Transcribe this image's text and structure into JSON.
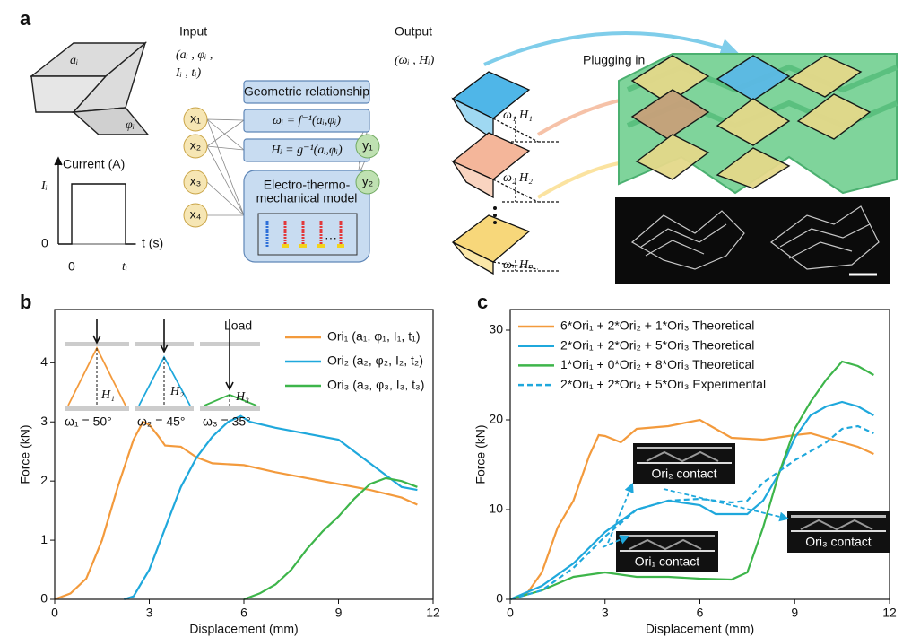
{
  "diagram": {
    "label": "a",
    "input": "Input",
    "input_params": [
      "(aᵢ , φᵢ ,",
      "Iᵢ , tᵢ)"
    ],
    "output": "Output",
    "output_params": "(ωᵢ , Hᵢ)",
    "shape_labels": [
      "aᵢ",
      "φᵢ"
    ],
    "current_plot": {
      "ylabel": "Current (A)",
      "level": "Iᵢ",
      "y0": "0",
      "x0": "0",
      "xend": "tᵢ",
      "xlabel": "t (s)"
    },
    "inputs": [
      "x₁",
      "x₂",
      "x₃",
      "x₄"
    ],
    "outputs": [
      "y₁",
      "y₂"
    ],
    "boxes": [
      "Geometric relationship",
      "ωᵢ = f⁻¹(aᵢ,φᵢ)",
      "Hᵢ = g⁻¹(aᵢ,φᵢ)",
      "Electro-thermo-",
      "mechanical model",
      "···"
    ],
    "units": [
      "ω₁",
      "H₁",
      "ω₂",
      "H₂",
      "ωₙ",
      "Hₙ"
    ],
    "plugging": "Plugging in"
  },
  "chart_data": [
    {
      "type": "line",
      "label": "b",
      "xlabel": "Displacement (mm)",
      "ylabel": "Force (kN)",
      "xlim": [
        0,
        12
      ],
      "xticks": [
        0,
        3,
        6,
        9,
        12
      ],
      "ylim": [
        0,
        4.9
      ],
      "yticks": [
        0,
        1,
        2,
        3,
        4
      ],
      "annotations": [
        "Load",
        "H₁",
        "H₂",
        "H₃",
        "ω₁ = 50°",
        "ω₂ = 45°",
        "ω₃ = 35°"
      ],
      "series": [
        {
          "name": "Ori₁ (a₁, φ₁, I₁, t₁)",
          "color": "#f39a3c",
          "x": [
            0,
            0.5,
            1,
            1.5,
            2,
            2.5,
            2.8,
            3,
            3.3,
            3.5,
            4,
            4.5,
            5,
            6,
            7,
            8,
            9,
            10,
            11,
            11.5
          ],
          "values": [
            0,
            0.1,
            0.35,
            1.0,
            1.9,
            2.7,
            3.0,
            2.95,
            2.75,
            2.6,
            2.58,
            2.4,
            2.3,
            2.27,
            2.15,
            2.05,
            1.95,
            1.85,
            1.72,
            1.6
          ]
        },
        {
          "name": "Ori₂ (a₂, φ₂, I₂, t₂)",
          "color": "#1fa8dc",
          "x": [
            2.2,
            2.5,
            3,
            3.5,
            4,
            4.5,
            5,
            5.5,
            5.9,
            6.2,
            7,
            8,
            9,
            9.5,
            10,
            10.5,
            11,
            11.5
          ],
          "values": [
            0,
            0.05,
            0.5,
            1.2,
            1.9,
            2.4,
            2.75,
            3.0,
            3.1,
            3.0,
            2.9,
            2.8,
            2.7,
            2.5,
            2.3,
            2.1,
            1.9,
            1.85
          ]
        },
        {
          "name": "Ori₃ (a₃, φ₃, I₃, t₃)",
          "color": "#3db54a",
          "x": [
            6,
            6.5,
            7,
            7.5,
            8,
            8.5,
            9,
            9.5,
            10,
            10.5,
            11,
            11.5
          ],
          "values": [
            0,
            0.1,
            0.25,
            0.5,
            0.85,
            1.15,
            1.4,
            1.7,
            1.95,
            2.05,
            2.0,
            1.9
          ]
        }
      ]
    },
    {
      "type": "line",
      "label": "c",
      "xlabel": "Displacement (mm)",
      "ylabel": "Force (kN)",
      "xlim": [
        0,
        12
      ],
      "xticks": [
        0,
        3,
        6,
        9,
        12
      ],
      "ylim": [
        0,
        32.3
      ],
      "yticks": [
        0,
        10,
        20,
        30
      ],
      "annotations": [
        "Ori₂ contact",
        "Ori₁ contact",
        "Ori₃ contact"
      ],
      "series": [
        {
          "name": "6*Ori₁ + 2*Ori₂ + 1*Ori₃ Theoretical",
          "color": "#f39a3c",
          "x": [
            0,
            0.5,
            1,
            1.5,
            2,
            2.5,
            2.8,
            3,
            3.5,
            4,
            5,
            6,
            6.5,
            7,
            8,
            9,
            9.5,
            10,
            11,
            11.5
          ],
          "values": [
            0,
            0.5,
            3,
            8,
            11,
            16,
            18.3,
            18.2,
            17.5,
            19,
            19.3,
            20,
            19,
            18,
            17.8,
            18.3,
            18.5,
            18,
            17,
            16.2
          ]
        },
        {
          "name": "2*Ori₁ + 2*Ori₂ + 5*Ori₃ Theoretical",
          "color": "#1fa8dc",
          "x": [
            0,
            1,
            2,
            3,
            4,
            5,
            6,
            6.5,
            7.5,
            8,
            8.5,
            9,
            9.5,
            10,
            10.5,
            11,
            11.5
          ],
          "values": [
            0,
            1.5,
            4,
            7.5,
            10,
            11,
            10.5,
            9.5,
            9.5,
            11,
            14,
            18,
            20.5,
            21.5,
            22,
            21.5,
            20.5
          ]
        },
        {
          "name": "1*Ori₁ + 0*Ori₂ + 8*Ori₃ Theoretical",
          "color": "#3db54a",
          "x": [
            0,
            1,
            2,
            3,
            4,
            5,
            6,
            7,
            7.5,
            8,
            8.5,
            9,
            9.5,
            10,
            10.5,
            11,
            11.5
          ],
          "values": [
            0,
            1,
            2.5,
            3,
            2.5,
            2.5,
            2.3,
            2.2,
            3,
            8,
            14,
            19,
            22,
            24.5,
            26.5,
            26,
            25
          ]
        },
        {
          "name": "2*Ori₁ + 2*Ori₂ + 5*Ori₃ Experimental",
          "color": "#1fa8dc",
          "dash": true,
          "x": [
            0,
            1,
            2,
            3,
            4,
            5,
            6,
            7,
            7.5,
            8,
            9,
            10,
            10.5,
            11,
            11.5
          ],
          "values": [
            0,
            1,
            3.5,
            7,
            10,
            11,
            11.2,
            10.8,
            11,
            13,
            15.5,
            17.5,
            19,
            19.3,
            18.5
          ]
        }
      ]
    }
  ]
}
